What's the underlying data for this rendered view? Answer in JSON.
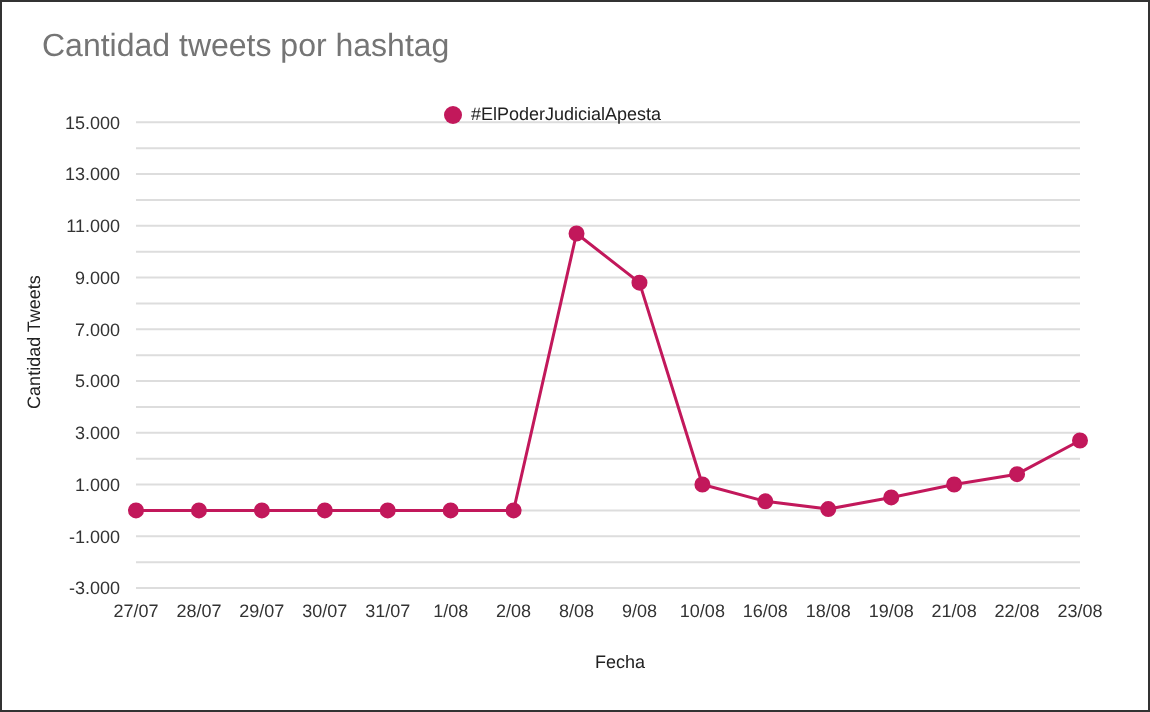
{
  "chart_data": {
    "type": "line",
    "title": "Cantidad tweets por hashtag",
    "xlabel": "Fecha",
    "ylabel": "Cantidad Tweets",
    "categories": [
      "27/07",
      "28/07",
      "29/07",
      "30/07",
      "31/07",
      "1/08",
      "2/08",
      "8/08",
      "9/08",
      "10/08",
      "16/08",
      "18/08",
      "19/08",
      "21/08",
      "22/08",
      "23/08"
    ],
    "series": [
      {
        "name": "#ElPoderJudicialApesta",
        "color": "#c2185b",
        "values": [
          0,
          0,
          0,
          0,
          0,
          0,
          0,
          10700,
          8800,
          1000,
          350,
          50,
          500,
          1000,
          1400,
          2700
        ]
      }
    ],
    "ylim": [
      -3000,
      15000
    ],
    "yticks": [
      {
        "value": -3000,
        "label": "-3.000"
      },
      {
        "value": -2000,
        "label": null
      },
      {
        "value": -1000,
        "label": "-1.000"
      },
      {
        "value": 0,
        "label": null
      },
      {
        "value": 1000,
        "label": "1.000"
      },
      {
        "value": 2000,
        "label": null
      },
      {
        "value": 3000,
        "label": "3.000"
      },
      {
        "value": 4000,
        "label": null
      },
      {
        "value": 5000,
        "label": "5.000"
      },
      {
        "value": 6000,
        "label": null
      },
      {
        "value": 7000,
        "label": "7.000"
      },
      {
        "value": 8000,
        "label": null
      },
      {
        "value": 9000,
        "label": "9.000"
      },
      {
        "value": 10000,
        "label": null
      },
      {
        "value": 11000,
        "label": "11.000"
      },
      {
        "value": 12000,
        "label": null
      },
      {
        "value": 13000,
        "label": "13.000"
      },
      {
        "value": 14000,
        "label": null
      },
      {
        "value": 15000,
        "label": "15.000"
      }
    ],
    "grid": "y",
    "legend": "top",
    "marker": "circle",
    "line_style": "solid"
  }
}
